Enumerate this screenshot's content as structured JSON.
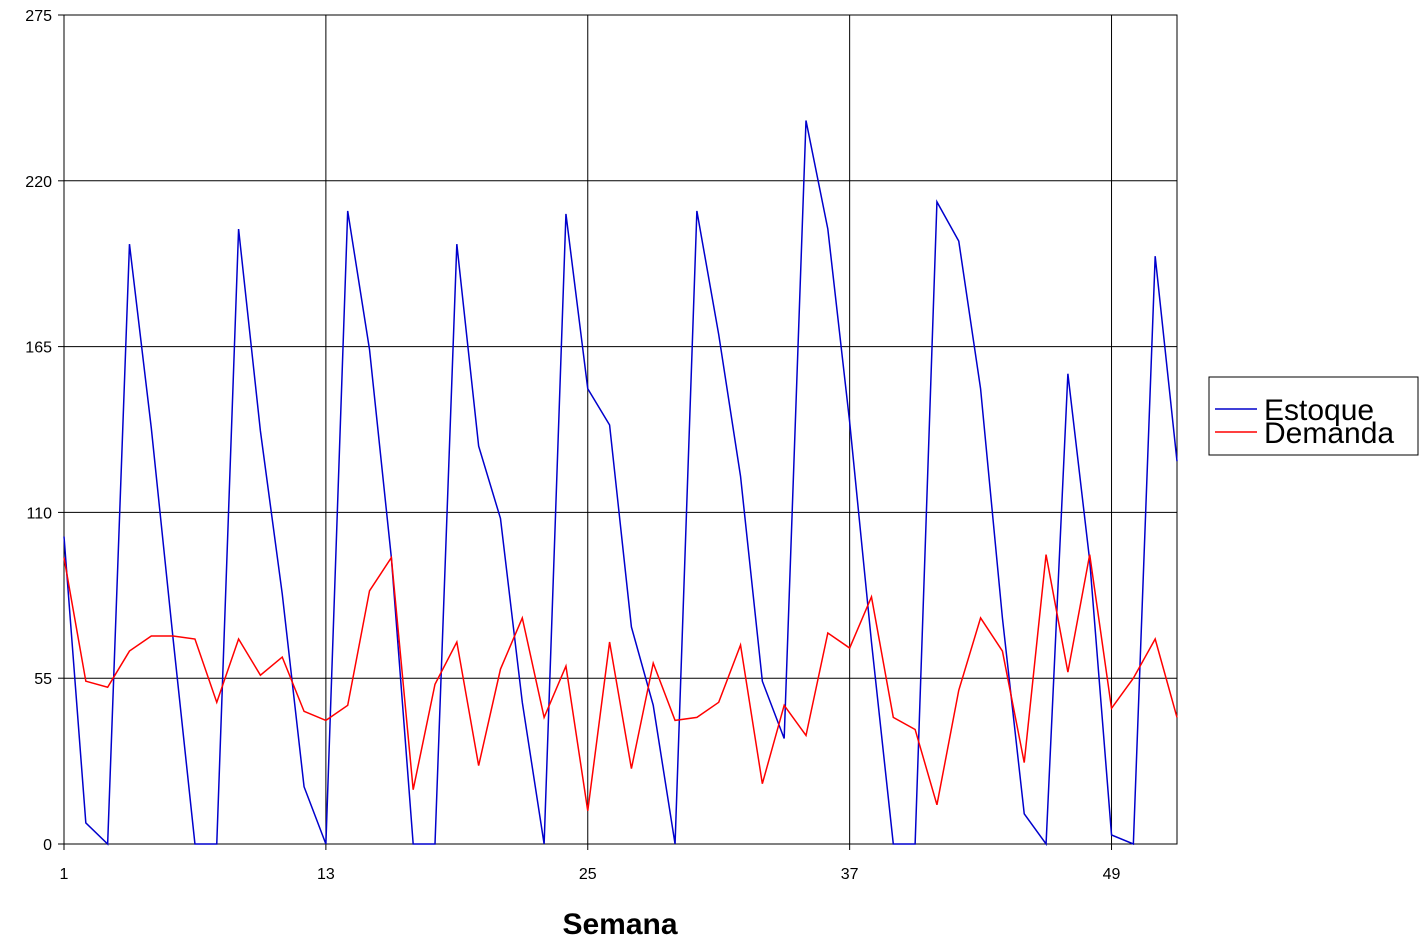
{
  "chart_data": {
    "type": "line",
    "title": "",
    "xlabel": "Semana",
    "ylabel": "",
    "ylim": [
      0,
      275
    ],
    "xlim": [
      1,
      52
    ],
    "yticks": [
      0,
      55,
      110,
      165,
      220,
      275
    ],
    "xticks": [
      1,
      13,
      25,
      37,
      49
    ],
    "grid": true,
    "legend_position": "right",
    "x": [
      1,
      2,
      3,
      4,
      5,
      6,
      7,
      8,
      9,
      10,
      11,
      12,
      13,
      14,
      15,
      16,
      17,
      18,
      19,
      20,
      21,
      22,
      23,
      24,
      25,
      26,
      27,
      28,
      29,
      30,
      31,
      32,
      33,
      34,
      35,
      36,
      37,
      38,
      39,
      40,
      41,
      42,
      43,
      44,
      45,
      46,
      47,
      48,
      49,
      50,
      51,
      52
    ],
    "series": [
      {
        "name": "Estoque",
        "color": "#0000cc",
        "values": [
          102,
          7,
          0,
          199,
          138,
          68,
          0,
          0,
          204,
          137,
          83,
          19,
          0,
          210,
          164,
          95,
          0,
          0,
          199,
          132,
          108,
          47,
          0,
          209,
          151,
          139,
          72,
          46,
          0,
          210,
          169,
          122,
          54,
          35,
          240,
          204,
          140,
          67,
          0,
          0,
          213,
          200,
          151,
          75,
          10,
          0,
          156,
          94,
          3,
          0,
          195,
          127
        ]
      },
      {
        "name": "Demanda",
        "color": "#ff0000",
        "values": [
          95,
          54,
          52,
          64,
          69,
          69,
          68,
          47,
          68,
          56,
          62,
          44,
          41,
          46,
          84,
          95,
          18,
          53,
          67,
          26,
          58,
          75,
          42,
          59,
          11,
          67,
          25,
          60,
          41,
          42,
          47,
          66,
          20,
          46,
          36,
          70,
          65,
          82,
          42,
          38,
          13,
          51,
          75,
          64,
          27,
          96,
          57,
          96,
          45,
          55,
          68,
          42
        ]
      }
    ]
  }
}
